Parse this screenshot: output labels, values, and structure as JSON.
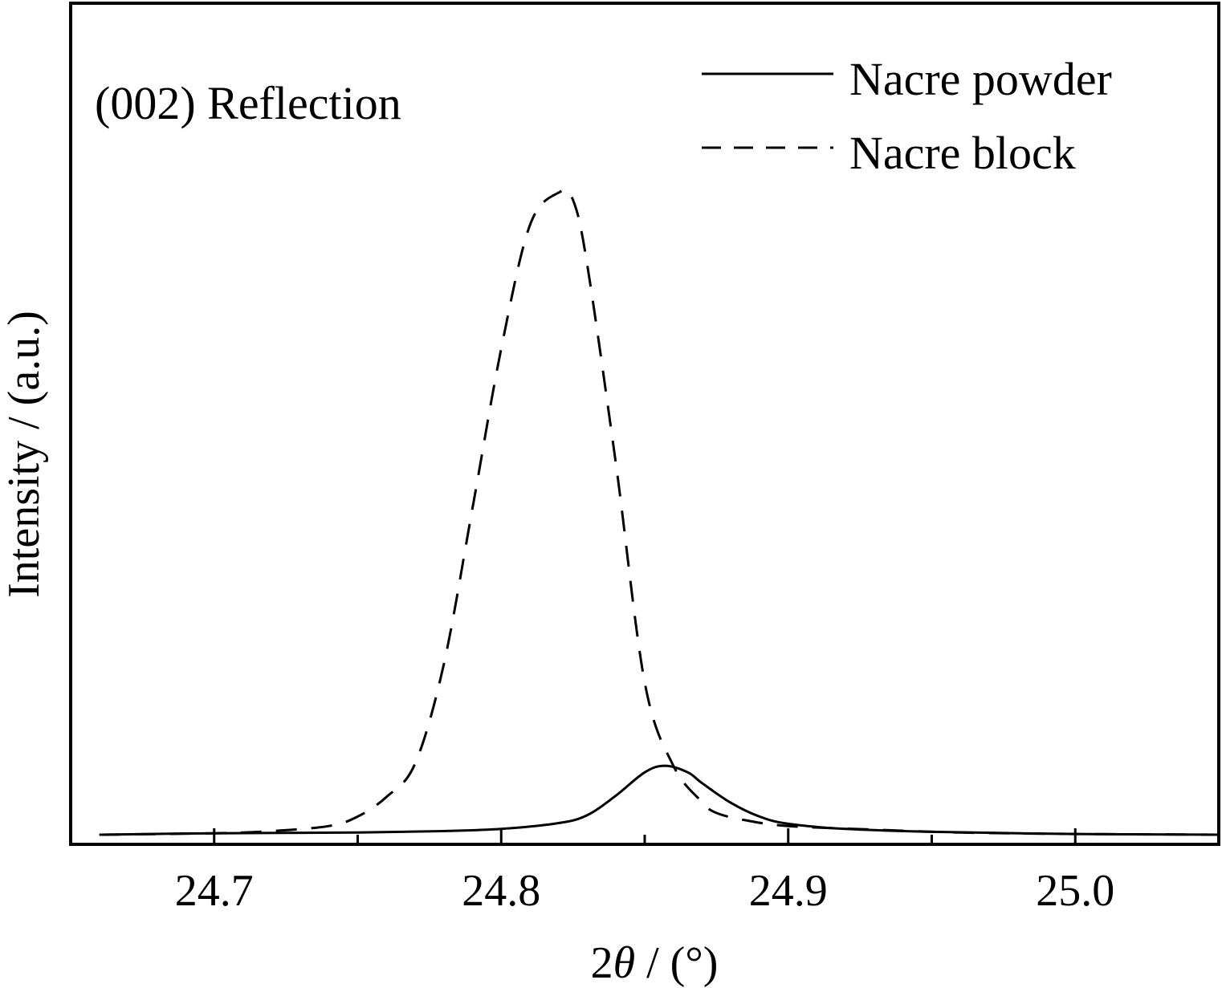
{
  "chart_data": {
    "type": "line",
    "annotation": "(002) Reflection",
    "xlabel_prefix": "2",
    "xlabel_symbol": "θ",
    "xlabel_suffix": " / (°)",
    "ylabel": "Intensity / (a.u.)",
    "xlim": [
      24.65,
      25.05
    ],
    "ylim": [
      0,
      1.0
    ],
    "xticks": [
      24.7,
      24.8,
      24.9,
      25.0
    ],
    "xtick_labels": [
      "24.7",
      "24.8",
      "24.9",
      "25.0"
    ],
    "xminor_ticks": [
      24.75,
      24.85,
      24.95
    ],
    "grid": false,
    "legend_position": "top-right",
    "series": [
      {
        "name": "Nacre powder",
        "style": "solid",
        "x": [
          24.66,
          24.7,
          24.75,
          24.78,
          24.8,
          24.82,
          24.83,
          24.84,
          24.85,
          24.857,
          24.865,
          24.87,
          24.88,
          24.89,
          24.9,
          24.92,
          24.95,
          25.0,
          25.05
        ],
        "y": [
          0.0,
          0.002,
          0.003,
          0.005,
          0.008,
          0.016,
          0.027,
          0.054,
          0.086,
          0.095,
          0.086,
          0.071,
          0.044,
          0.025,
          0.015,
          0.008,
          0.004,
          0.001,
          0.0
        ]
      },
      {
        "name": "Nacre block",
        "style": "dashed",
        "x": [
          24.66,
          24.7,
          24.72,
          24.74,
          24.75,
          24.76,
          24.77,
          24.78,
          24.79,
          24.8,
          24.81,
          24.82,
          24.825,
          24.83,
          24.84,
          24.85,
          24.86,
          24.87,
          24.875,
          24.885,
          24.9,
          24.93,
          24.96,
          25.0,
          25.05
        ],
        "y": [
          0.0,
          0.002,
          0.005,
          0.012,
          0.025,
          0.052,
          0.098,
          0.235,
          0.45,
          0.67,
          0.84,
          0.885,
          0.875,
          0.785,
          0.51,
          0.21,
          0.095,
          0.045,
          0.03,
          0.02,
          0.012,
          0.007,
          0.003,
          0.001,
          0.0
        ]
      }
    ]
  }
}
